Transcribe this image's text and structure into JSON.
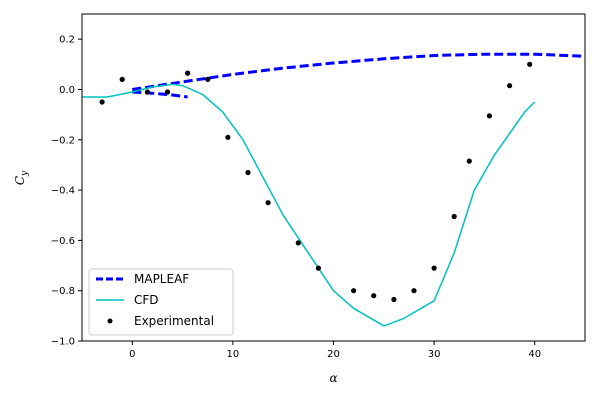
{
  "chart_data": {
    "type": "line",
    "xlabel": "α",
    "ylabel": {
      "main": "C",
      "sub": "y"
    },
    "xlim": [
      -5,
      45
    ],
    "ylim": [
      -1.0,
      0.3
    ],
    "xticks": [
      0,
      10,
      20,
      30,
      40
    ],
    "yticks": [
      0.2,
      0.0,
      -0.2,
      -0.4,
      -0.6,
      -0.8,
      -1.0
    ],
    "ytick_labels": [
      "0.2",
      "0.0",
      "−0.2",
      "−0.4",
      "−0.6",
      "−0.8",
      "−1.0"
    ],
    "grid": false,
    "legend_position": "lower-left",
    "series": [
      {
        "name": "MAPLEAF",
        "color": "#0000ff",
        "style": "dashed",
        "segments": [
          {
            "x": [
              0,
              5,
              10,
              15,
              20,
              25,
              30,
              35,
              40,
              45
            ],
            "y": [
              0.0,
              0.03,
              0.06,
              0.085,
              0.105,
              0.122,
              0.135,
              0.14,
              0.14,
              0.132
            ]
          },
          {
            "x": [
              0,
              2,
              4,
              5.5
            ],
            "y": [
              -0.01,
              -0.015,
              -0.022,
              -0.03
            ]
          }
        ]
      },
      {
        "name": "CFD",
        "color": "#00bfbf",
        "style": "solid",
        "x": [
          -5,
          -2.5,
          0,
          2,
          4,
          5,
          7,
          9,
          11,
          13,
          15,
          17,
          20,
          22,
          25,
          27,
          30,
          32,
          34,
          36,
          39,
          40
        ],
        "y": [
          -0.03,
          -0.03,
          -0.01,
          0.01,
          0.02,
          0.015,
          -0.02,
          -0.09,
          -0.2,
          -0.35,
          -0.5,
          -0.62,
          -0.8,
          -0.87,
          -0.94,
          -0.91,
          -0.84,
          -0.65,
          -0.4,
          -0.26,
          -0.09,
          -0.05
        ]
      },
      {
        "name": "Experimental",
        "color": "#000000",
        "style": "points",
        "x": [
          -3,
          -1,
          1.5,
          3.5,
          5.5,
          7.5,
          9.5,
          11.5,
          13.5,
          16.5,
          18.5,
          22,
          24,
          26,
          28,
          30,
          32,
          33.5,
          35.5,
          37.5,
          39.5
        ],
        "y": [
          -0.05,
          0.04,
          -0.01,
          -0.01,
          0.065,
          0.04,
          -0.19,
          -0.33,
          -0.45,
          -0.61,
          -0.71,
          -0.8,
          -0.82,
          -0.835,
          -0.8,
          -0.71,
          -0.505,
          -0.285,
          -0.105,
          0.015,
          0.1
        ]
      }
    ]
  }
}
